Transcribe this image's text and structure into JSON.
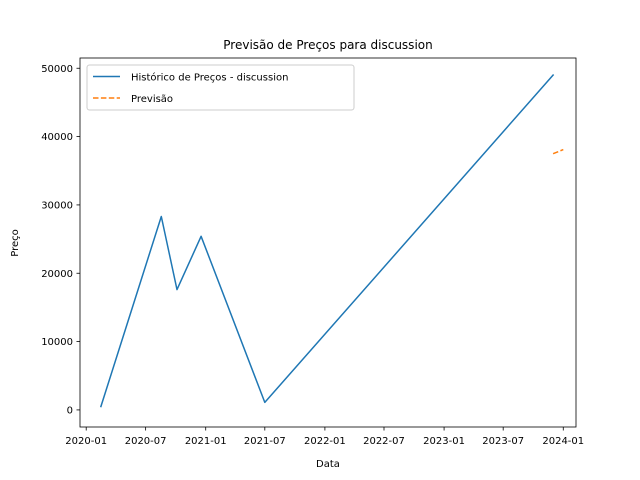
{
  "chart_data": {
    "type": "line",
    "title": "Previsão de Preços para discussion",
    "xlabel": "Data",
    "ylabel": "Preço",
    "x_axis_type": "date",
    "xlim": [
      "2019-12-13",
      "2024-02-09"
    ],
    "ylim": [
      -2500,
      51500
    ],
    "x_ticks": [
      "2020-01-01",
      "2020-07-01",
      "2021-01-01",
      "2021-07-01",
      "2022-01-01",
      "2022-07-01",
      "2023-01-01",
      "2023-07-01",
      "2024-01-01"
    ],
    "x_tick_labels": [
      "2020-01",
      "2020-07",
      "2021-01",
      "2021-07",
      "2022-01",
      "2022-07",
      "2023-01",
      "2023-07",
      "2024-01"
    ],
    "y_ticks": [
      0,
      10000,
      20000,
      30000,
      40000,
      50000
    ],
    "y_tick_labels": [
      "0",
      "10000",
      "20000",
      "30000",
      "40000",
      "50000"
    ],
    "grid": false,
    "legend_position": "top-left",
    "series": [
      {
        "name": "Histórico de Preços - discussion",
        "color": "#1f77b4",
        "style": "solid",
        "x": [
          "2020-02-15",
          "2020-08-18",
          "2020-10-05",
          "2020-12-18",
          "2021-07-01",
          "2023-12-01"
        ],
        "y": [
          500,
          28300,
          17600,
          25400,
          1100,
          49000
        ]
      },
      {
        "name": "Previsão",
        "color": "#ff7f0e",
        "style": "dashed",
        "x": [
          "2023-12-01",
          "2024-01-01"
        ],
        "y": [
          37500,
          38100
        ]
      }
    ]
  }
}
